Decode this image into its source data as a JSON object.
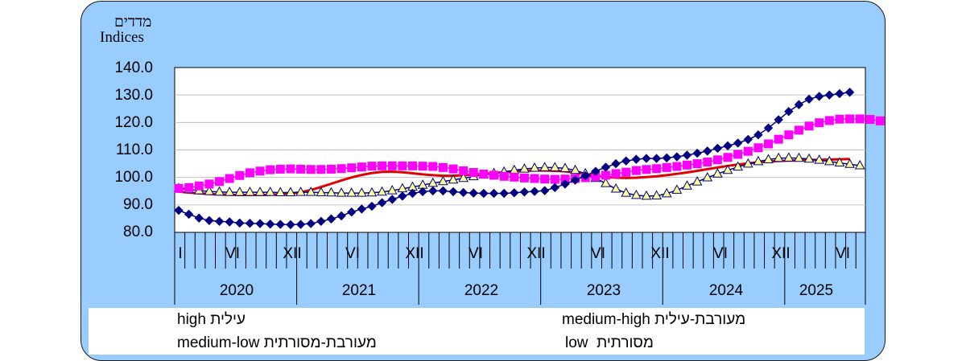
{
  "axis": {
    "ylabel_he": "מדדים",
    "ylabel_en": "Indices",
    "yticks": [
      "140.0",
      "130.0",
      "120.0",
      "110.0",
      "100.0",
      "90.0",
      "80.0"
    ],
    "month_ticks": [
      "I",
      "VI",
      "XII",
      "VI",
      "XII",
      "VI",
      "XII",
      "VI",
      "XII",
      "VI",
      "XII",
      "VI"
    ],
    "years": [
      "2020",
      "2021",
      "2022",
      "2023",
      "2024",
      "2025"
    ]
  },
  "legend": {
    "high": "high עילית",
    "medium_high": "medium-high מעורבת-עילית",
    "medium_low": "medium-low מעורבת-מסורתית",
    "low": "low  מסורתית"
  },
  "colors": {
    "panel": "#99ccff",
    "high": "#000080",
    "medium_high": "#ff00ff",
    "medium_low": "#000080",
    "medium_low_fill": "#ffff99",
    "low": "#e00000"
  },
  "chart_data": {
    "type": "line",
    "x_start": "2020-01",
    "ylim": [
      80,
      140
    ],
    "yticks": [
      80,
      90,
      100,
      110,
      120,
      130,
      140
    ],
    "series": [
      {
        "name": "high עילית",
        "marker": "diamond",
        "values": [
          88.0,
          86.6,
          85.2,
          84.3,
          84.0,
          83.8,
          83.4,
          83.3,
          83.2,
          83.0,
          82.9,
          82.8,
          82.9,
          83.2,
          84.0,
          84.9,
          86.0,
          87.4,
          88.5,
          89.5,
          90.8,
          92.0,
          93.2,
          94.2,
          94.8,
          95.1,
          95.1,
          94.8,
          94.5,
          94.3,
          94.2,
          94.2,
          94.2,
          94.4,
          94.7,
          94.9,
          95.2,
          96.3,
          97.6,
          99.0,
          100.6,
          102.2,
          103.7,
          105.0,
          106.0,
          106.6,
          106.9,
          106.9,
          107.1,
          107.5,
          108.1,
          108.8,
          109.6,
          110.6,
          111.5,
          112.5,
          113.8,
          115.5,
          118.0,
          121.0,
          124.0,
          126.5,
          128.5,
          129.5,
          130.0,
          130.5,
          131.0
        ]
      },
      {
        "name": "medium-high מעורבת-עילית",
        "marker": "square",
        "values": [
          96.0,
          96.3,
          96.9,
          97.6,
          98.5,
          99.6,
          100.7,
          101.7,
          102.3,
          102.8,
          103.0,
          103.1,
          103.0,
          102.9,
          102.9,
          103.0,
          103.2,
          103.5,
          103.8,
          104.1,
          104.2,
          104.2,
          104.2,
          104.2,
          104.1,
          104.0,
          103.6,
          103.1,
          102.4,
          101.8,
          101.2,
          100.8,
          100.4,
          100.1,
          99.8,
          99.6,
          99.4,
          99.3,
          99.4,
          99.6,
          99.9,
          100.3,
          100.8,
          101.4,
          101.9,
          102.5,
          102.9,
          103.2,
          103.6,
          104.0,
          104.5,
          105.0,
          105.6,
          106.4,
          107.3,
          108.4,
          109.5,
          110.8,
          112.2,
          113.9,
          115.5,
          117.2,
          118.7,
          119.9,
          120.7,
          121.2,
          121.3,
          121.3,
          121.1,
          120.6
        ]
      },
      {
        "name": "medium-low מעורבת-מסורתית",
        "marker": "triangle",
        "values": [
          96.0,
          95.6,
          95.2,
          94.9,
          94.7,
          94.6,
          94.6,
          94.6,
          94.6,
          94.6,
          94.5,
          94.5,
          94.6,
          94.6,
          94.5,
          94.4,
          94.3,
          94.3,
          94.3,
          94.4,
          94.7,
          95.2,
          95.9,
          96.5,
          97.2,
          97.9,
          98.5,
          99.1,
          99.7,
          100.3,
          100.9,
          101.5,
          102.0,
          102.6,
          103.1,
          103.4,
          103.6,
          103.6,
          103.3,
          102.6,
          101.4,
          99.7,
          97.8,
          95.8,
          94.3,
          93.5,
          93.2,
          93.3,
          94.1,
          95.4,
          96.9,
          98.4,
          99.9,
          101.3,
          102.6,
          103.8,
          104.9,
          105.8,
          106.5,
          107.0,
          107.1,
          107.0,
          106.7,
          106.3,
          105.8,
          105.3,
          104.8,
          104.3
        ]
      },
      {
        "name": "low  מסורתית",
        "marker": "none",
        "values": [
          94.8,
          94.5,
          94.2,
          94.0,
          93.8,
          93.7,
          93.6,
          93.6,
          93.6,
          93.7,
          93.9,
          94.1,
          94.6,
          95.4,
          96.5,
          97.7,
          98.9,
          100.0,
          100.9,
          101.6,
          102.0,
          102.1,
          101.9,
          101.5,
          101.1,
          100.8,
          100.6,
          100.6,
          100.8,
          101.0,
          101.3,
          101.6,
          101.9,
          102.2,
          102.4,
          102.5,
          102.5,
          102.4,
          102.2,
          101.8,
          101.3,
          100.7,
          100.2,
          99.9,
          99.8,
          99.9,
          100.1,
          100.4,
          100.8,
          101.3,
          101.8,
          102.4,
          103.0,
          103.6,
          104.2,
          104.7,
          105.1,
          105.5,
          105.8,
          106.0,
          106.1,
          106.2,
          106.3,
          106.4,
          106.5,
          106.6,
          106.7
        ]
      }
    ]
  }
}
